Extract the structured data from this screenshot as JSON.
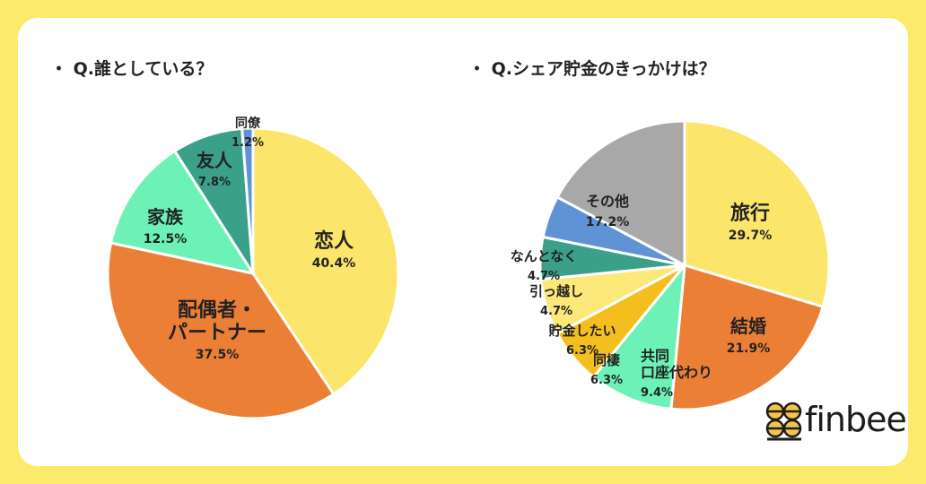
{
  "colors": {
    "yellow": "#fbe56b",
    "orange": "#ec7f36",
    "mint": "#6cf2b7",
    "teal": "#3ba08a",
    "blue": "#5f93d6",
    "gray": "#a8a8a8",
    "lightyellow": "#fbe878",
    "amber": "#f5be1f"
  },
  "logo": {
    "text": "finbee",
    "icon": "bee-honeycomb-icon"
  },
  "chart_data": [
    {
      "type": "pie",
      "title": "・ Q.誰としている？",
      "slices": [
        {
          "label": "恋人",
          "value": 40.4,
          "value_label": "40.4%",
          "color": "#fbe56b"
        },
        {
          "label": "配偶者・\nパートナー",
          "value": 37.5,
          "value_label": "37.5%",
          "color": "#ec7f36"
        },
        {
          "label": "家族",
          "value": 12.5,
          "value_label": "12.5%",
          "color": "#6cf2b7"
        },
        {
          "label": "友人",
          "value": 7.8,
          "value_label": "7.8%",
          "color": "#3ba08a"
        },
        {
          "label": "同僚",
          "value": 1.2,
          "value_label": "1.2%",
          "color": "#5f93d6"
        }
      ]
    },
    {
      "type": "pie",
      "title": "・ Q.シェア貯金のきっかけは？",
      "slices": [
        {
          "label": "旅行",
          "value": 29.7,
          "value_label": "29.7%",
          "color": "#fbe56b"
        },
        {
          "label": "結婚",
          "value": 21.9,
          "value_label": "21.9%",
          "color": "#ec7f36"
        },
        {
          "label": "共同\n口座代わり",
          "value": 9.4,
          "value_label": "9.4%",
          "color": "#6cf2b7"
        },
        {
          "label": "同棲",
          "value": 6.3,
          "value_label": "6.3%",
          "color": "#f5be1f"
        },
        {
          "label": "貯金したい",
          "value": 6.3,
          "value_label": "6.3%",
          "color": "#fbe878"
        },
        {
          "label": "引っ越し",
          "value": 4.7,
          "value_label": "4.7%",
          "color": "#3ba08a"
        },
        {
          "label": "なんとなく",
          "value": 4.7,
          "value_label": "4.7%",
          "color": "#5f93d6"
        },
        {
          "label": "その他",
          "value": 17.2,
          "value_label": "17.2%",
          "color": "#a8a8a8"
        }
      ]
    }
  ]
}
